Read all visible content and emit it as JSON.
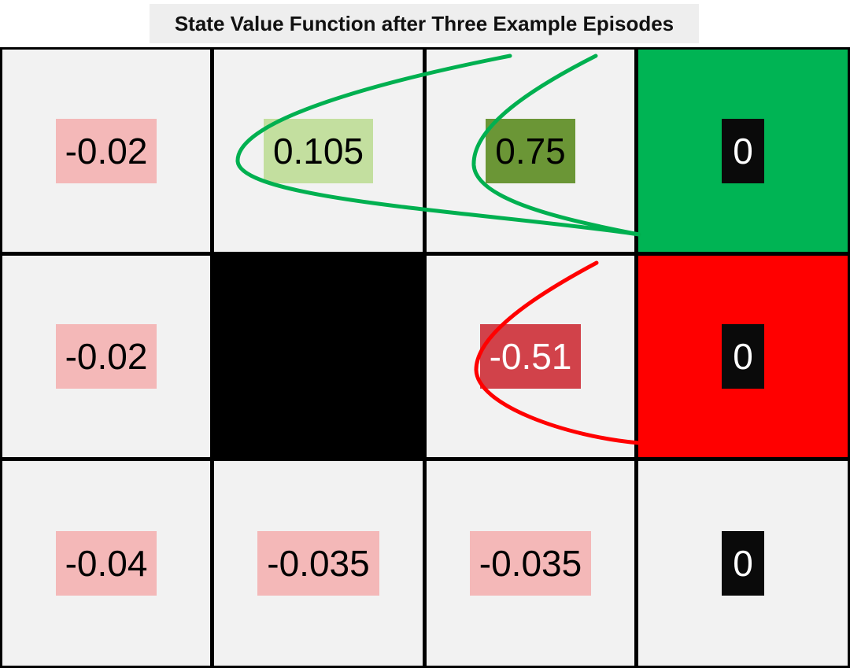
{
  "title": "State Value Function after Three Example Episodes",
  "grid": {
    "rows": [
      [
        {
          "value": "-0.02",
          "kind": "neg"
        },
        {
          "value": "0.105",
          "kind": "pos-light"
        },
        {
          "value": "0.75",
          "kind": "pos-dark"
        },
        {
          "value": "0",
          "kind": "terminal-goal"
        }
      ],
      [
        {
          "value": "-0.02",
          "kind": "neg"
        },
        {
          "value": "",
          "kind": "wall"
        },
        {
          "value": "-0.51",
          "kind": "neg-dark"
        },
        {
          "value": "0",
          "kind": "terminal-pit"
        }
      ],
      [
        {
          "value": "-0.04",
          "kind": "neg"
        },
        {
          "value": "-0.035",
          "kind": "neg"
        },
        {
          "value": "-0.035",
          "kind": "neg"
        },
        {
          "value": "0",
          "kind": "terminal"
        }
      ]
    ]
  },
  "colors": {
    "goal": "#00b454",
    "pit": "#ff0000",
    "wall": "#000000",
    "cell": "#f2f2f2",
    "green_arrow": "#00b050",
    "red_arrow": "#ff0000"
  }
}
